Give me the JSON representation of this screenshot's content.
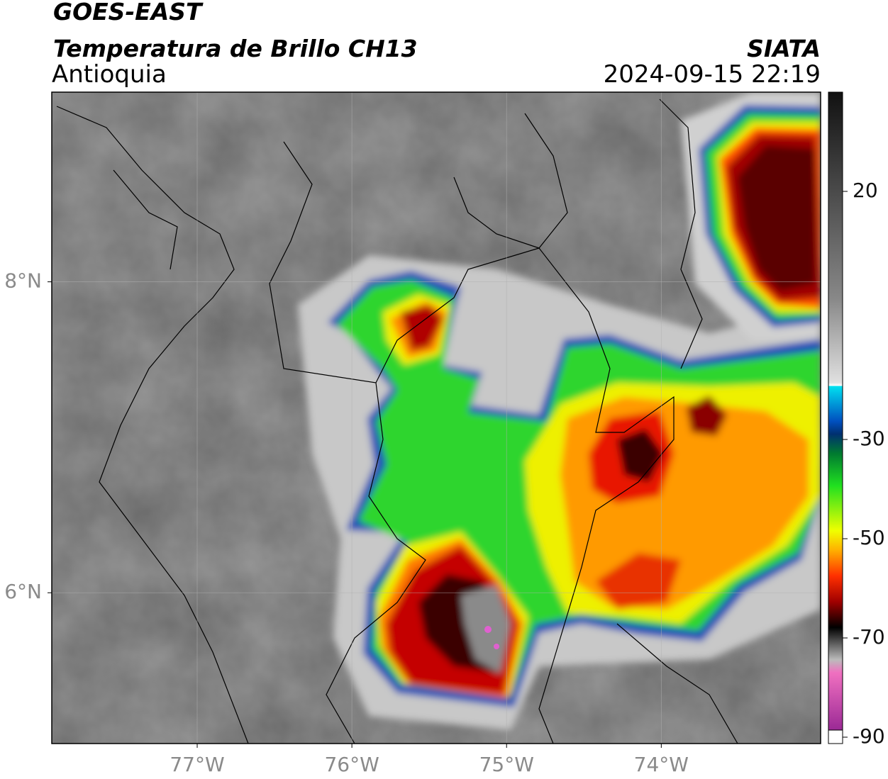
{
  "header": {
    "title": "GOES-EAST",
    "subtitle": "Temperatura de Brillo CH13",
    "region": "Antioquia",
    "source": "SIATA",
    "datetime": "2024-09-15 22:19"
  },
  "map": {
    "lon_range": [
      -77.94,
      -72.97
    ],
    "lat_range": [
      5.03,
      9.22
    ],
    "lon_ticks": [
      {
        "value": -77,
        "label": "77°W"
      },
      {
        "value": -76,
        "label": "76°W"
      },
      {
        "value": -75,
        "label": "75°W"
      },
      {
        "value": -74,
        "label": "74°W"
      }
    ],
    "lat_ticks": [
      {
        "value": 8,
        "label": "8°N"
      },
      {
        "value": 6,
        "label": "6°N"
      }
    ]
  },
  "colorbar": {
    "range": [
      -90,
      40
    ],
    "ticks": [
      20,
      -30,
      -50,
      -70,
      -90
    ]
  }
}
